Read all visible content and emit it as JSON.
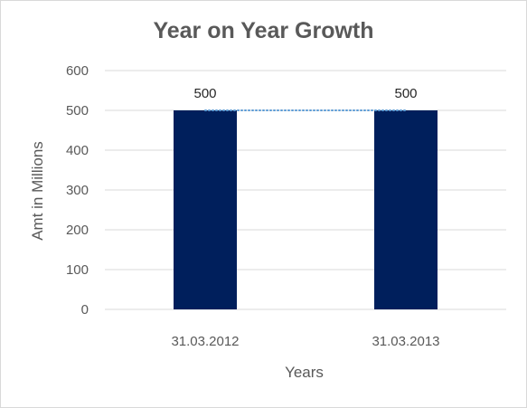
{
  "chart_data": {
    "type": "bar",
    "title": "Year on Year Growth",
    "xlabel": "Years",
    "ylabel": "Amt in Millions",
    "categories": [
      "31.03.2012",
      "31.03.2013"
    ],
    "values": [
      500,
      500
    ],
    "data_labels": [
      "500",
      "500"
    ],
    "ylim": [
      0,
      600
    ],
    "yticks": [
      0,
      100,
      200,
      300,
      400,
      500,
      600
    ],
    "grid": true,
    "legend": "none",
    "trendline": "dotted",
    "colors": {
      "bar": "#001f5c",
      "grid": "#d9d9d9",
      "text": "#595959",
      "trendline": "#5b9bd5"
    }
  }
}
